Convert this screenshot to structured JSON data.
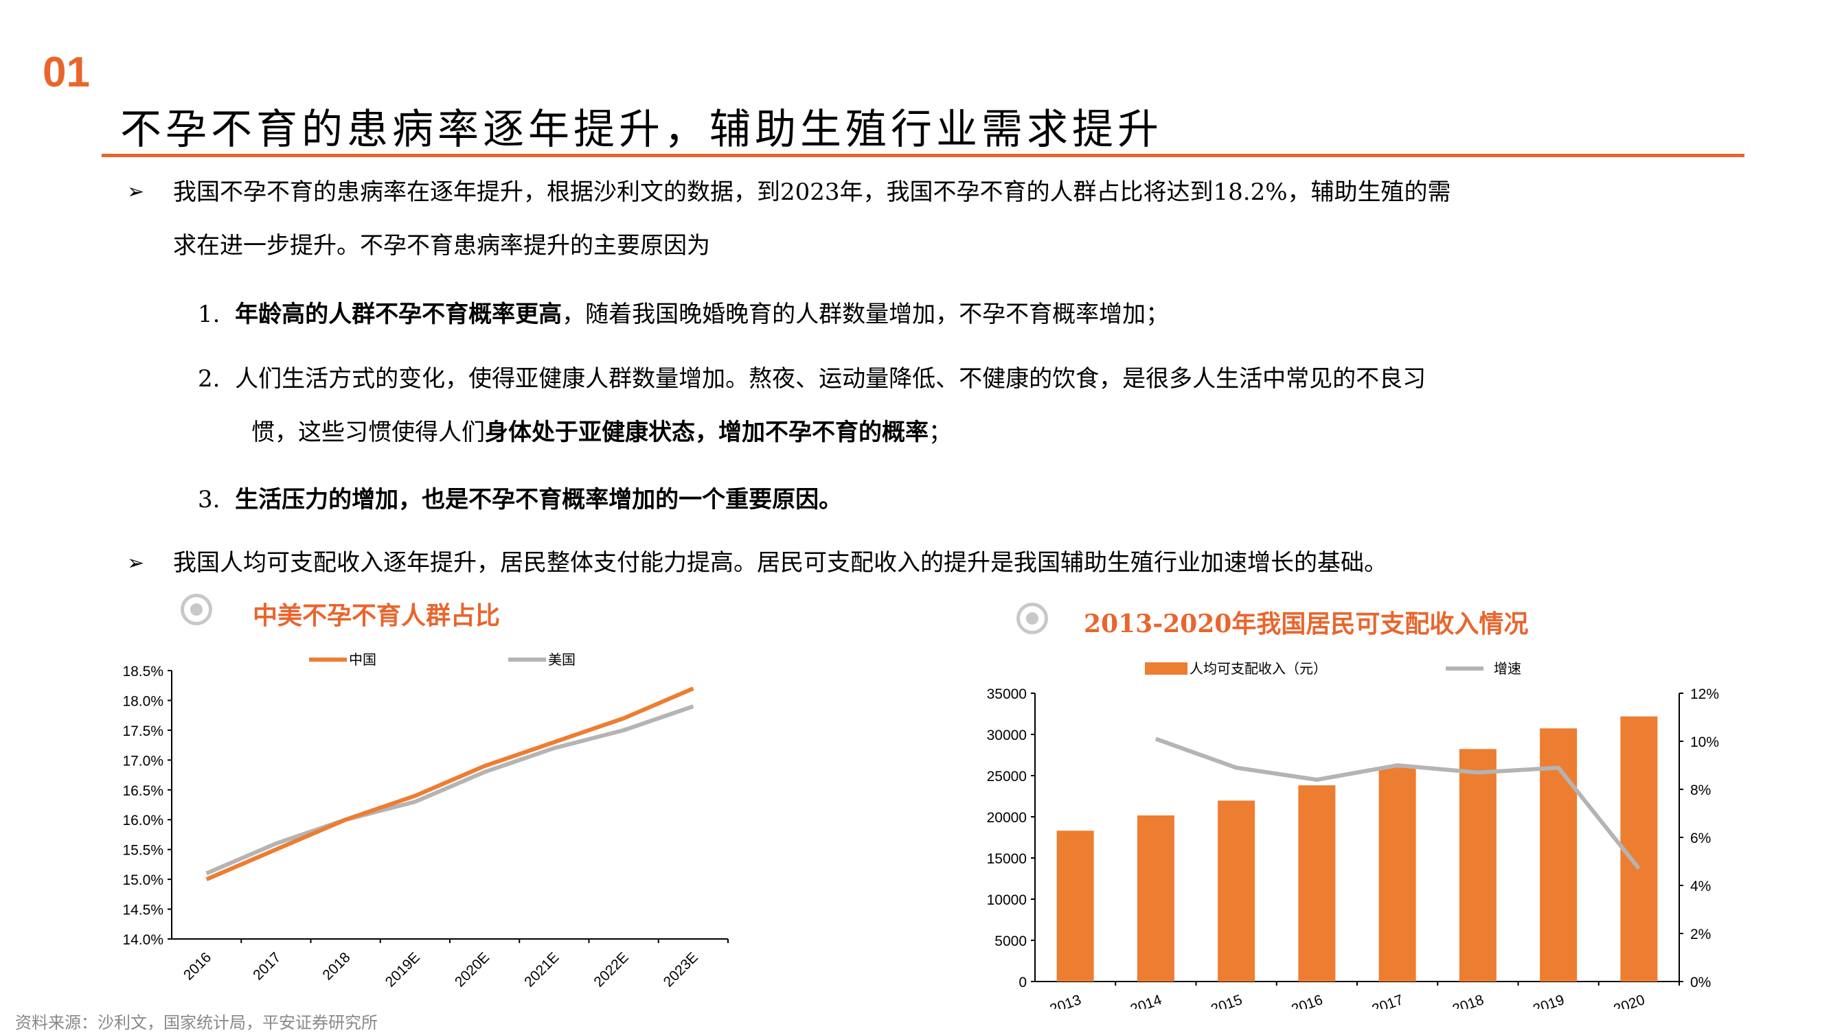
{
  "header": {
    "section_number": "01",
    "title": "不孕不育的患病率逐年提升，辅助生殖行业需求提升"
  },
  "body": {
    "bullet1_line1": "我国不孕不育的患病率在逐年提升，根据沙利文的数据，到2023年，我国不孕不育的人群占比将达到18.2%，辅助生殖的需",
    "bullet1_line2": "求在进一步提升。不孕不育患病率提升的主要原因为",
    "items": [
      {
        "num": "1.",
        "bold": "年龄高的人群不孕不育概率更高",
        "rest": "，随着我国晚婚晚育的人群数量增加，不孕不育概率增加；"
      },
      {
        "num": "2.",
        "line1": "人们生活方式的变化，使得亚健康人群数量增加。熬夜、运动量降低、不健康的饮食，是很多人生活中常见的不良习",
        "line2_pre": "惯，这些习惯使得人们",
        "line2_bold": "身体处于亚健康状态，增加不孕不育的概率",
        "line2_post": "；"
      },
      {
        "num": "3.",
        "bold": "生活压力的增加，也是不孕不育概率增加的一个重要原因。"
      }
    ],
    "bullet2": "我国人均可支配收入逐年提升，居民整体支付能力提高。居民可支配收入的提升是我国辅助生殖行业加速增长的基础。"
  },
  "source": "资料来源：沙利文，国家统计局，平安证券研究所",
  "chart_data": [
    {
      "type": "line",
      "title": "中美不孕不育人群占比",
      "categories": [
        "2016",
        "2017",
        "2018",
        "2019E",
        "2020E",
        "2021E",
        "2022E",
        "2023E"
      ],
      "series": [
        {
          "name": "中国",
          "color": "#ed7d31",
          "values": [
            15.0,
            15.5,
            16.0,
            16.4,
            16.9,
            17.3,
            17.7,
            18.2
          ]
        },
        {
          "name": "美国",
          "color": "#b4b4b4",
          "values": [
            15.1,
            15.6,
            16.0,
            16.3,
            16.8,
            17.2,
            17.5,
            17.9
          ]
        }
      ],
      "ylim": [
        14.0,
        18.5
      ],
      "yticks": [
        "14.0%",
        "14.5%",
        "15.0%",
        "15.5%",
        "16.0%",
        "16.5%",
        "17.0%",
        "17.5%",
        "18.0%",
        "18.5%"
      ],
      "legend_position": "top",
      "grid": false
    },
    {
      "type": "bar+line",
      "title": "2013-2020年我国居民可支配收入情况",
      "categories": [
        "2013",
        "2014",
        "2015",
        "2016",
        "2017",
        "2018",
        "2019",
        "2020"
      ],
      "series": [
        {
          "name": "人均可支配收入（元）",
          "type": "bar",
          "axis": "left",
          "color": "#ed7d31",
          "values": [
            18311,
            20167,
            21966,
            23821,
            25974,
            28228,
            30733,
            32189
          ]
        },
        {
          "name": "增速",
          "type": "line",
          "axis": "right",
          "color": "#b4b4b4",
          "values": [
            null,
            10.1,
            8.9,
            8.4,
            9.0,
            8.7,
            8.9,
            4.7
          ]
        }
      ],
      "ylim_left": [
        0,
        35000
      ],
      "yticks_left": [
        "0",
        "5000",
        "10000",
        "15000",
        "20000",
        "25000",
        "30000",
        "35000"
      ],
      "ylim_right": [
        0,
        12
      ],
      "yticks_right": [
        "0%",
        "2%",
        "4%",
        "6%",
        "8%",
        "10%",
        "12%"
      ],
      "legend_position": "top",
      "grid": false
    }
  ]
}
